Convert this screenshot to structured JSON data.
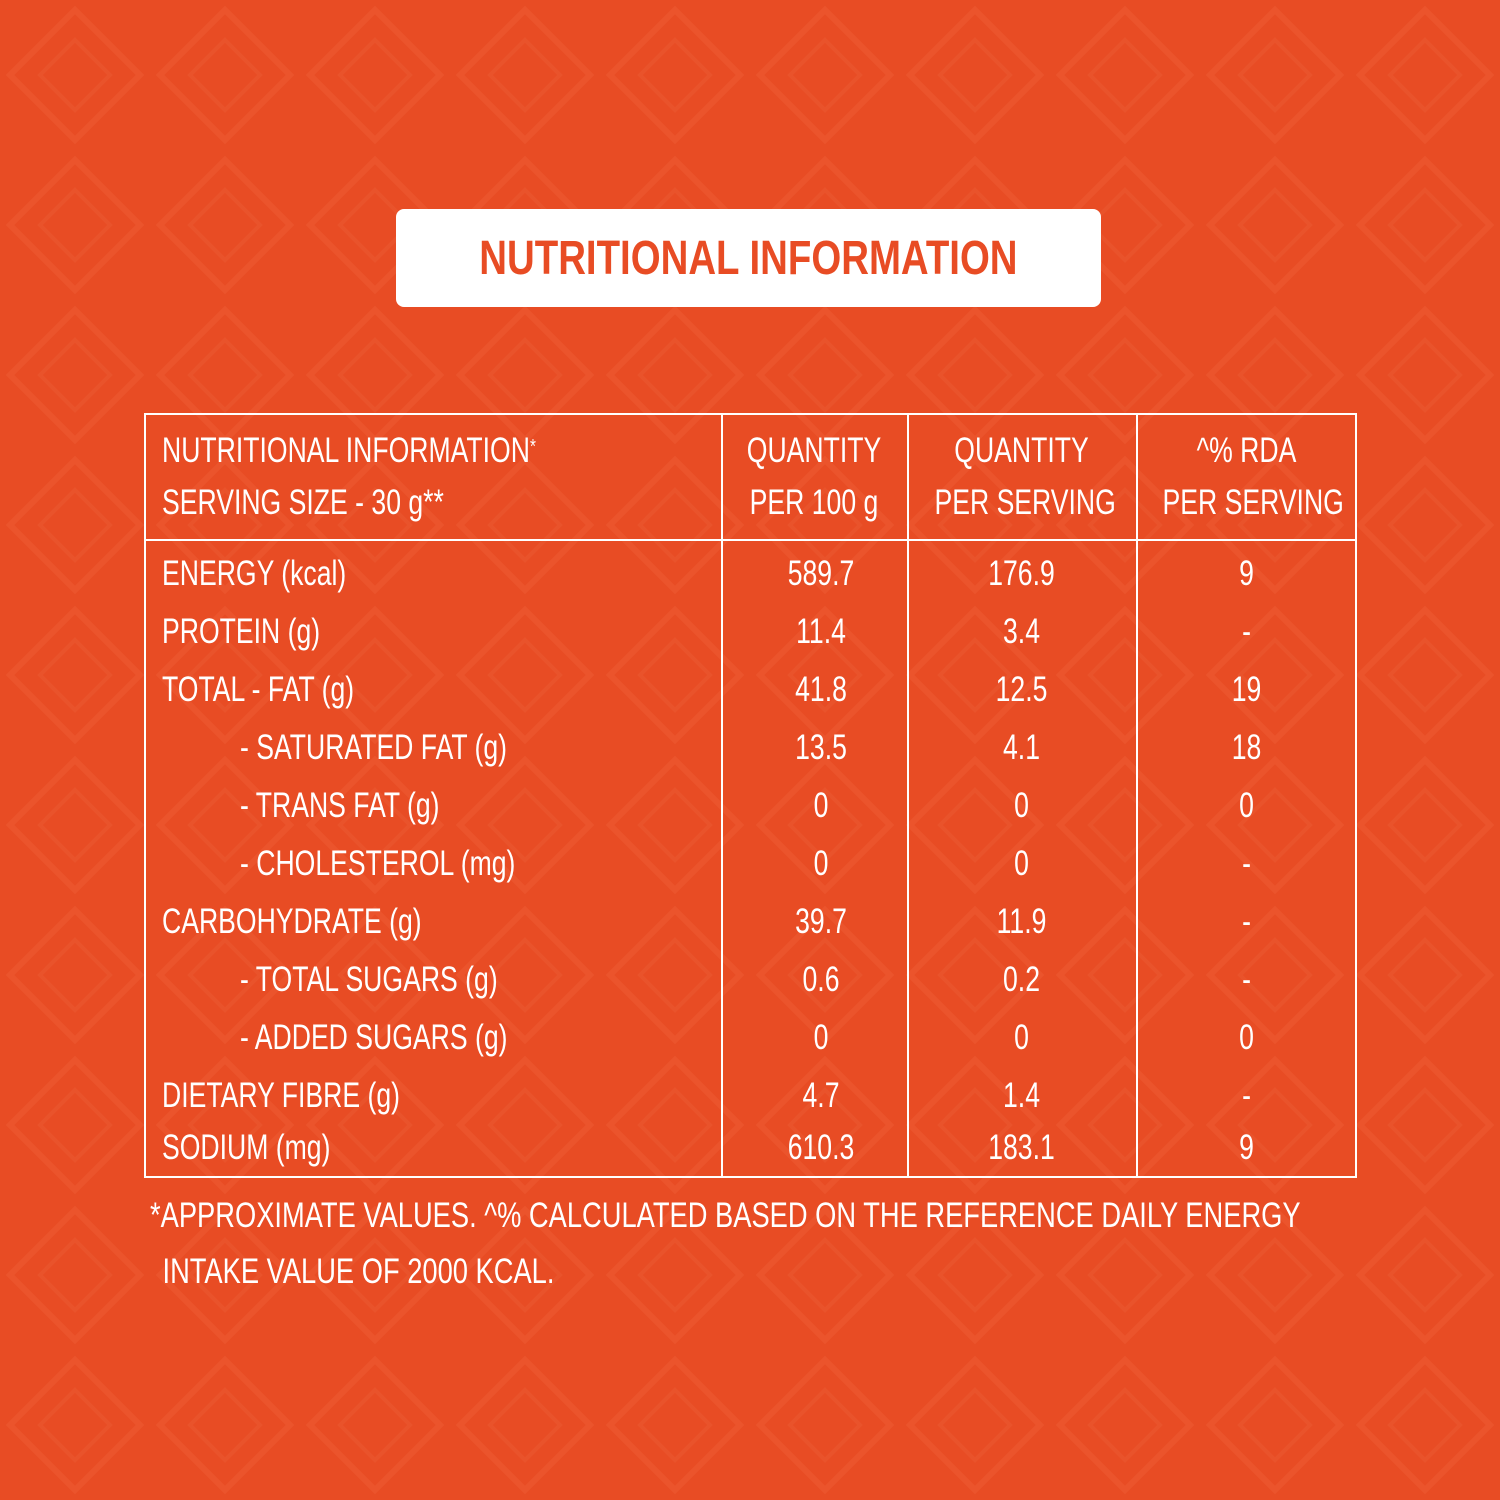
{
  "title": "NUTRITIONAL INFORMATION",
  "table": {
    "header": {
      "col1_line1": "NUTRITIONAL INFORMATION",
      "col1_line1_mark": "*",
      "col1_line2": "SERVING SIZE - 30 g**",
      "col2_line1": "QUANTITY",
      "col2_line2": "PER 100 g",
      "col3_line1": "QUANTITY",
      "col3_line2": "PER SERVING",
      "col4_line1": "^% RDA",
      "col4_line2": "PER SERVING"
    },
    "rows": [
      {
        "name": "ENERGY (kcal)",
        "per100": "589.7",
        "perserving": "176.9",
        "rda": "9",
        "indent": false
      },
      {
        "name": "PROTEIN (g)",
        "per100": "11.4",
        "perserving": "3.4",
        "rda": "-",
        "indent": false
      },
      {
        "name": "TOTAL - FAT  (g)",
        "per100": "41.8",
        "perserving": "12.5",
        "rda": "19",
        "indent": false
      },
      {
        "name": "- SATURATED FAT (g)",
        "per100": "13.5",
        "perserving": "4.1",
        "rda": "18",
        "indent": true
      },
      {
        "name": "- TRANS FAT (g)",
        "per100": "0",
        "perserving": "0",
        "rda": "0",
        "indent": true
      },
      {
        "name": "- CHOLESTEROL (mg)",
        "per100": "0",
        "perserving": "0",
        "rda": "-",
        "indent": true
      },
      {
        "name": "CARBOHYDRATE (g)",
        "per100": "39.7",
        "perserving": "11.9",
        "rda": "-",
        "indent": false
      },
      {
        "name": "- TOTAL SUGARS (g)",
        "per100": "0.6",
        "perserving": "0.2",
        "rda": "-",
        "indent": true
      },
      {
        "name": "- ADDED SUGARS (g)",
        "per100": "0",
        "perserving": "0",
        "rda": "0",
        "indent": true
      },
      {
        "name": "DIETARY FIBRE (g)",
        "per100": "4.7",
        "perserving": "1.4",
        "rda": "-",
        "indent": false
      },
      {
        "name": "SODIUM (mg)",
        "per100": "610.3",
        "perserving": "183.1",
        "rda": "9",
        "indent": false
      }
    ]
  },
  "footnote": {
    "line1": "*APPROXIMATE VALUES. ^% CALCULATED BASED ON THE REFERENCE DAILY ENERGY",
    "line2": "INTAKE VALUE OF 2000 KCAL."
  },
  "colors": {
    "background": "#e84c24",
    "text": "#ffffff",
    "title_box": "#ffffff",
    "title_text": "#e84c24"
  }
}
